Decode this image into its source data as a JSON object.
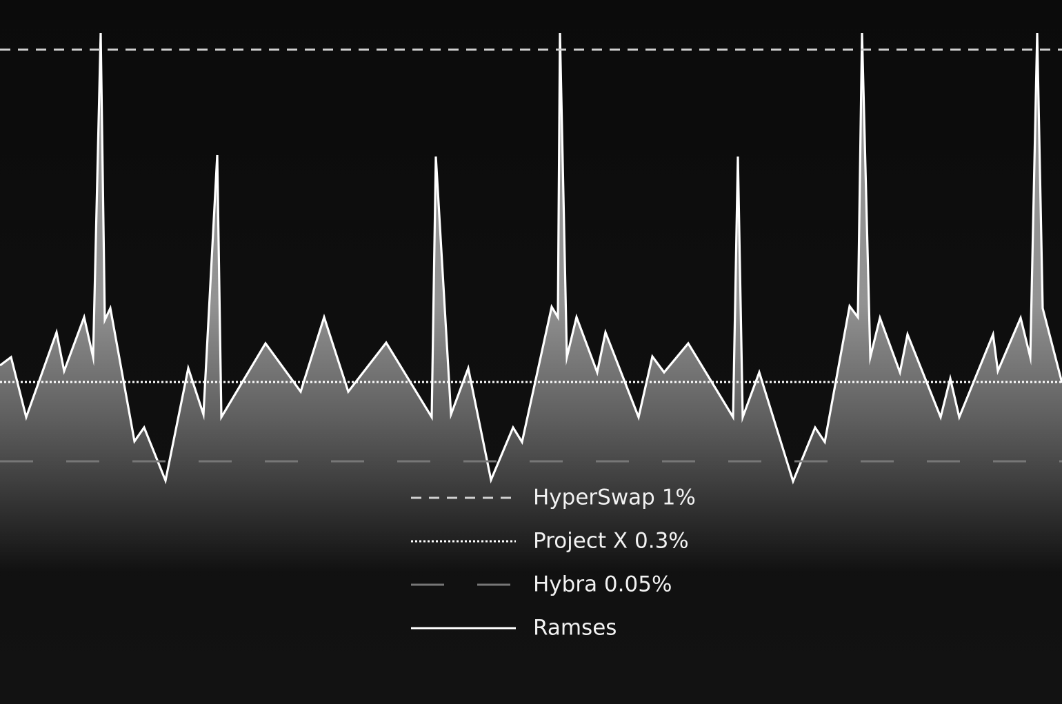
{
  "chart_data": {
    "type": "line",
    "xlim": [
      0,
      154
    ],
    "ylim": [
      0,
      100
    ],
    "legend": "bottom-center",
    "series": [
      {
        "name": "HyperSwap 1%",
        "color": "#d0d0d0",
        "style": "dashed",
        "value": 94.9
      },
      {
        "name": "Project X 0.3%",
        "color": "#ffffff",
        "style": "dotted",
        "value": 46.7
      },
      {
        "name": "Hybra 0.05%",
        "color": "#777777",
        "style": "long-dashed",
        "value": 35.2
      },
      {
        "name": "Ramses",
        "color": "#ffffff",
        "style": "solid",
        "x": [
          0,
          1.6,
          3.8,
          8.2,
          9.3,
          12.2,
          13.5,
          14.6,
          15.2,
          16,
          19.5,
          20.9,
          24,
          27.3,
          29.5,
          31.5,
          32.1,
          38.5,
          43.6,
          47,
          50.5,
          56,
          62.6,
          63.2,
          65.4,
          67.9,
          71.2,
          74.4,
          75.7,
          80,
          80.9,
          81.2,
          82.2,
          83.6,
          86.6,
          87.8,
          92.6,
          94.6,
          96.3,
          99.8,
          106.3,
          107,
          107.7,
          110.1,
          115,
          118.2,
          119.6,
          123.2,
          124.4,
          125,
          126.2,
          127.6,
          130.5,
          131.6,
          136.4,
          137.8,
          139.1,
          144,
          144.7,
          148,
          149.4,
          150.4,
          151.2,
          154
        ],
        "values": [
          49.1,
          50.3,
          41.6,
          53.9,
          48.3,
          56.1,
          50.3,
          97.3,
          55.7,
          57.4,
          38.1,
          40.1,
          32.4,
          48.7,
          42,
          79.6,
          41.6,
          52.3,
          45.3,
          56.1,
          45.3,
          52.4,
          41.6,
          79.4,
          42,
          48.7,
          32.5,
          40.1,
          38,
          57.6,
          56.1,
          97.3,
          50.3,
          56.1,
          48.1,
          53.9,
          41.6,
          50.4,
          48.1,
          52.3,
          41.6,
          79.4,
          41.6,
          48.1,
          32.3,
          40.1,
          38,
          57.7,
          56.1,
          97.3,
          50.3,
          56,
          48.1,
          53.6,
          41.6,
          47.2,
          41.6,
          53.6,
          48.3,
          56,
          50.3,
          97.3,
          57.4,
          46.6
        ]
      }
    ]
  }
}
